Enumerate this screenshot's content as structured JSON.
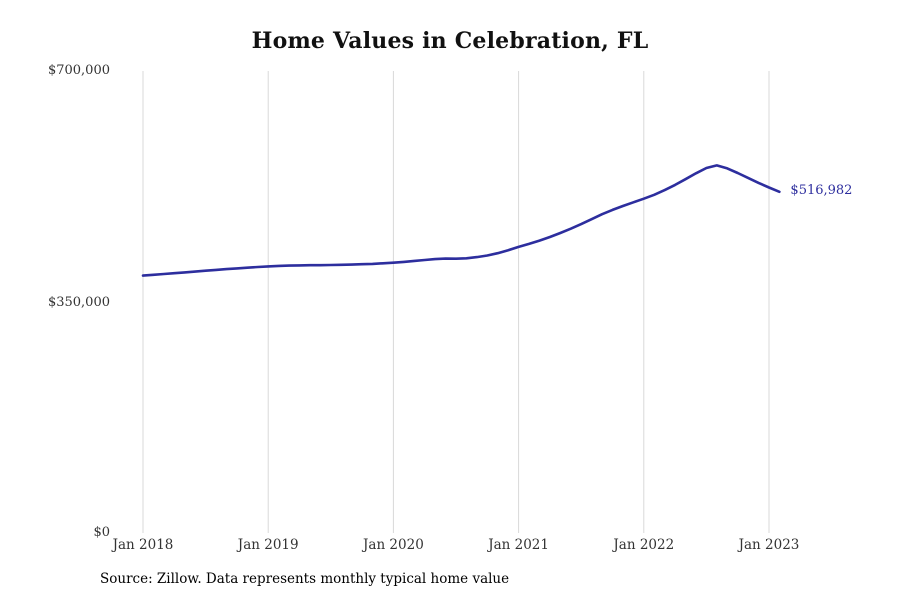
{
  "chart_data": {
    "type": "line",
    "title": "Home Values in Celebration, FL",
    "x_tick_labels": [
      "Jan 2018",
      "Jan 2019",
      "Jan 2020",
      "Jan 2021",
      "Jan 2022",
      "Jan 2023"
    ],
    "y_tick_labels": [
      "$700,000",
      "$350,000",
      "$0"
    ],
    "ylim": [
      0,
      700000
    ],
    "x": [
      "2018-01",
      "2018-02",
      "2018-03",
      "2018-04",
      "2018-05",
      "2018-06",
      "2018-07",
      "2018-08",
      "2018-09",
      "2018-10",
      "2018-11",
      "2018-12",
      "2019-01",
      "2019-02",
      "2019-03",
      "2019-04",
      "2019-05",
      "2019-06",
      "2019-07",
      "2019-08",
      "2019-09",
      "2019-10",
      "2019-11",
      "2019-12",
      "2020-01",
      "2020-02",
      "2020-03",
      "2020-04",
      "2020-05",
      "2020-06",
      "2020-07",
      "2020-08",
      "2020-09",
      "2020-10",
      "2020-11",
      "2020-12",
      "2021-01",
      "2021-02",
      "2021-03",
      "2021-04",
      "2021-05",
      "2021-06",
      "2021-07",
      "2021-08",
      "2021-09",
      "2021-10",
      "2021-11",
      "2021-12",
      "2022-01",
      "2022-02",
      "2022-03",
      "2022-04",
      "2022-05",
      "2022-06",
      "2022-07",
      "2022-08",
      "2022-09",
      "2022-10",
      "2022-11",
      "2022-12",
      "2023-01",
      "2023-02"
    ],
    "values": [
      390000,
      391200,
      392400,
      393600,
      394800,
      396100,
      397400,
      398600,
      399800,
      400900,
      402000,
      403000,
      404000,
      404700,
      405200,
      405500,
      405700,
      405800,
      406000,
      406300,
      406700,
      407200,
      407800,
      408600,
      409500,
      410800,
      412200,
      413700,
      415000,
      415800,
      415600,
      416200,
      418000,
      420500,
      424000,
      428500,
      433500,
      438000,
      443000,
      448500,
      454500,
      461000,
      468000,
      475500,
      483000,
      489500,
      495500,
      501000,
      506500,
      512500,
      519500,
      527500,
      536000,
      545000,
      553000,
      557000,
      552500,
      545500,
      538000,
      530500,
      523500,
      516982
    ],
    "end_label": "$516,982",
    "line_color": "#2d2e9e",
    "grid_color": "#d9d9d9",
    "source": "Source: Zillow. Data represents monthly typical home value"
  }
}
